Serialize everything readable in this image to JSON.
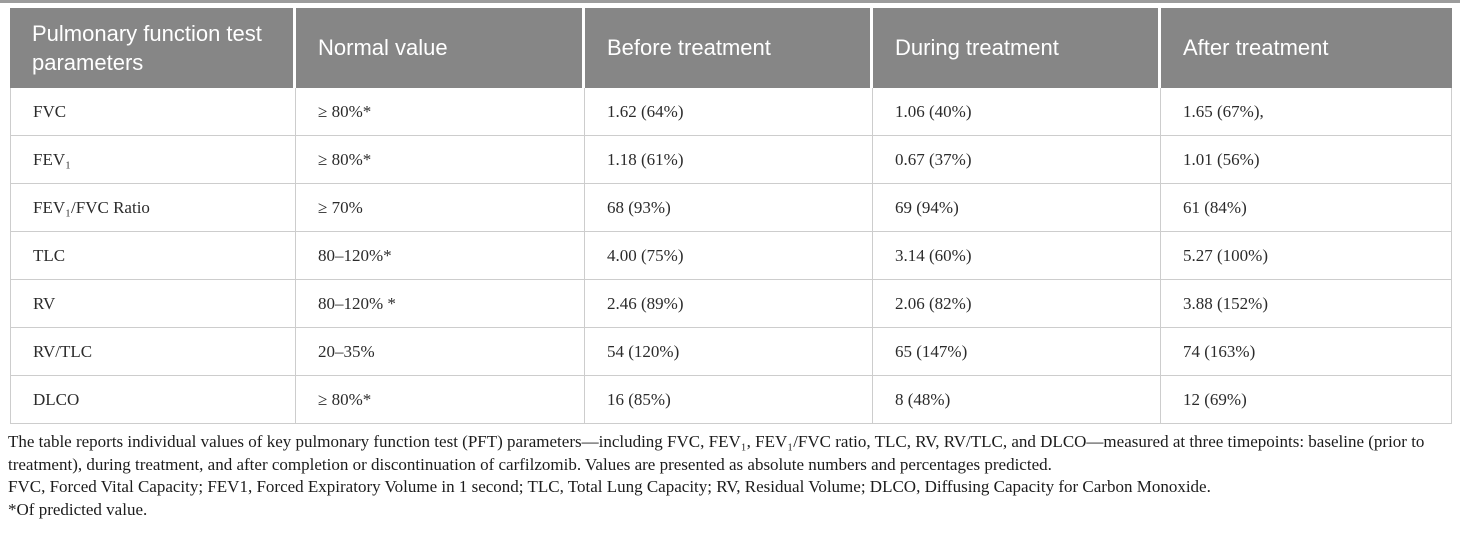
{
  "colors": {
    "header_bg": "#868686",
    "header_text": "#ffffff",
    "row_border": "#cdcdcd",
    "body_text": "#2b2b2b",
    "footnote_text": "#1c1c1c",
    "top_rule": "#9c9c9c",
    "page_bg": "#ffffff"
  },
  "table": {
    "columns": [
      "Pulmonary function test parameters",
      "Normal value",
      "Before treatment",
      "During treatment",
      "After treatment"
    ],
    "rows": [
      {
        "parameter": "FVC",
        "normal": "≥ 80%*",
        "before": "1.62 (64%)",
        "during": "1.06 (40%)",
        "after": "1.65 (67%),"
      },
      {
        "parameter": "FEV₁",
        "normal": "≥ 80%*",
        "before": "1.18 (61%)",
        "during": "0.67 (37%)",
        "after": "1.01 (56%)"
      },
      {
        "parameter": "FEV₁/FVC Ratio",
        "normal": "≥ 70%",
        "before": "68 (93%)",
        "during": "69 (94%)",
        "after": "61 (84%)"
      },
      {
        "parameter": "TLC",
        "normal": "80–120%*",
        "before": "4.00 (75%)",
        "during": "3.14 (60%)",
        "after": "5.27 (100%)"
      },
      {
        "parameter": "RV",
        "normal": "80–120% *",
        "before": "2.46 (89%)",
        "during": "2.06 (82%)",
        "after": "3.88 (152%)"
      },
      {
        "parameter": "RV/TLC",
        "normal": "20–35%",
        "before": "54 (120%)",
        "during": "65 (147%)",
        "after": "74 (163%)"
      },
      {
        "parameter": "DLCO",
        "normal": "≥ 80%*",
        "before": "16 (85%)",
        "during": "8 (48%)",
        "after": "12 (69%)"
      }
    ]
  },
  "footnotes": {
    "description": "The table reports individual values of key pulmonary function test (PFT) parameters—including FVC, FEV₁, FEV₁/FVC ratio, TLC, RV, RV/TLC, and DLCO—measured at three timepoints: baseline (prior to treatment), during treatment, and after completion or discontinuation of carfilzomib. Values are presented as absolute numbers and percentages predicted.",
    "abbreviations": "FVC, Forced Vital Capacity; FEV1, Forced Expiratory Volume in 1 second; TLC, Total Lung Capacity; RV, Residual Volume; DLCO, Diffusing Capacity for Carbon Monoxide.",
    "asterisk": "*Of predicted value."
  }
}
